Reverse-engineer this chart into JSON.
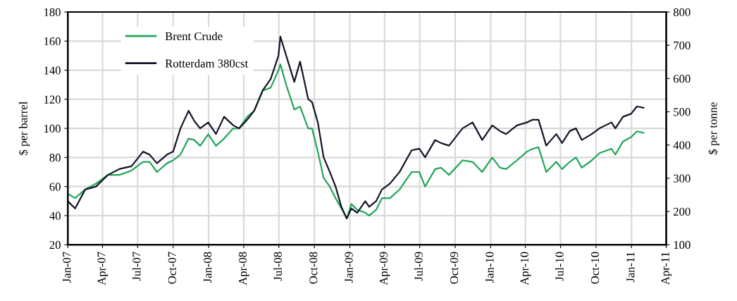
{
  "chart_data": {
    "type": "line",
    "ylabel": "$ per barrel",
    "y2label": "$ per tonne",
    "xlim": [
      "2007-01-01",
      "2011-04-01"
    ],
    "xticks": [
      {
        "value": "2007-01-01",
        "label": "Jan-07"
      },
      {
        "value": "2007-04-01",
        "label": "Apr-07"
      },
      {
        "value": "2007-07-01",
        "label": "Jul-07"
      },
      {
        "value": "2007-10-01",
        "label": "Oct-07"
      },
      {
        "value": "2008-01-01",
        "label": "Jan-08"
      },
      {
        "value": "2008-04-01",
        "label": "Apr-08"
      },
      {
        "value": "2008-07-01",
        "label": "Jul-08"
      },
      {
        "value": "2008-10-01",
        "label": "Oct-08"
      },
      {
        "value": "2009-01-01",
        "label": "Jan-09"
      },
      {
        "value": "2009-04-01",
        "label": "Apr-09"
      },
      {
        "value": "2009-07-01",
        "label": "Jul-09"
      },
      {
        "value": "2009-10-01",
        "label": "Oct-09"
      },
      {
        "value": "2010-01-01",
        "label": "Jan-10"
      },
      {
        "value": "2010-04-01",
        "label": "Apr-10"
      },
      {
        "value": "2010-07-01",
        "label": "Jul-10"
      },
      {
        "value": "2010-10-01",
        "label": "Oct-10"
      },
      {
        "value": "2011-01-01",
        "label": "Jan-11"
      },
      {
        "value": "2011-04-01",
        "label": "Apr-11"
      }
    ],
    "ylim": [
      20,
      180
    ],
    "yticks": [
      20,
      40,
      60,
      80,
      100,
      120,
      140,
      160,
      180
    ],
    "y2lim": [
      100,
      800
    ],
    "y2ticks": [
      100,
      200,
      300,
      400,
      500,
      600,
      700,
      800
    ],
    "grid": true,
    "legend": "top left",
    "marker": "none",
    "line_style": "solid",
    "x": [
      "2007-01-01",
      "2007-01-20",
      "2007-02-15",
      "2007-03-15",
      "2007-04-15",
      "2007-05-15",
      "2007-06-15",
      "2007-07-15",
      "2007-08-01",
      "2007-08-20",
      "2007-09-15",
      "2007-10-01",
      "2007-10-20",
      "2007-11-10",
      "2007-11-25",
      "2007-12-10",
      "2007-12-31",
      "2008-01-20",
      "2008-02-10",
      "2008-03-05",
      "2008-03-20",
      "2008-04-10",
      "2008-04-28",
      "2008-05-20",
      "2008-06-10",
      "2008-06-30",
      "2008-07-05",
      "2008-07-20",
      "2008-08-10",
      "2008-08-25",
      "2008-09-15",
      "2008-09-25",
      "2008-10-10",
      "2008-10-25",
      "2008-11-10",
      "2008-11-25",
      "2008-12-10",
      "2008-12-24",
      "2009-01-05",
      "2009-01-20",
      "2009-02-10",
      "2009-02-20",
      "2009-03-10",
      "2009-03-25",
      "2009-04-15",
      "2009-05-10",
      "2009-06-10",
      "2009-06-30",
      "2009-07-15",
      "2009-08-10",
      "2009-08-25",
      "2009-09-15",
      "2009-10-20",
      "2009-11-15",
      "2009-12-10",
      "2010-01-05",
      "2010-01-25",
      "2010-02-10",
      "2010-03-10",
      "2010-04-05",
      "2010-04-20",
      "2010-05-05",
      "2010-05-25",
      "2010-06-20",
      "2010-07-05",
      "2010-07-25",
      "2010-08-10",
      "2010-08-25",
      "2010-09-20",
      "2010-10-10",
      "2010-11-10",
      "2010-11-20",
      "2010-12-10",
      "2010-12-31",
      "2011-01-15",
      "2011-02-01"
    ],
    "series": [
      {
        "name": "Brent Crude",
        "color": "#22a55b",
        "values": [
          55,
          52,
          58,
          62,
          68,
          68,
          71,
          77,
          77,
          70,
          76,
          78,
          82,
          93,
          92,
          88,
          96,
          88,
          93,
          100,
          100,
          108,
          112,
          126,
          128,
          140,
          144,
          130,
          113,
          115,
          100,
          100,
          84,
          66,
          60,
          52,
          45,
          38,
          48,
          44,
          42,
          40,
          44,
          52,
          52,
          58,
          70,
          70,
          60,
          72,
          73,
          68,
          78,
          77,
          70,
          80,
          73,
          72,
          78,
          84,
          86,
          87,
          70,
          77,
          72,
          77,
          80,
          73,
          78,
          83,
          86,
          82,
          91,
          94,
          98,
          97
        ]
      },
      {
        "name": "Rotterdam 380cst",
        "color": "#141428",
        "axis": "y2",
        "values": [
          231,
          209,
          266,
          275,
          310,
          328,
          336,
          380,
          371,
          345,
          371,
          380,
          450,
          503,
          472,
          450,
          468,
          433,
          485,
          459,
          450,
          476,
          503,
          564,
          599,
          669,
          726,
          669,
          590,
          651,
          538,
          529,
          468,
          363,
          319,
          275,
          214,
          179,
          209,
          196,
          231,
          214,
          231,
          266,
          284,
          319,
          384,
          389,
          363,
          415,
          406,
          398,
          450,
          468,
          415,
          459,
          442,
          433,
          459,
          468,
          476,
          476,
          398,
          433,
          406,
          442,
          450,
          415,
          433,
          450,
          468,
          450,
          485,
          494,
          516,
          512
        ]
      }
    ]
  }
}
